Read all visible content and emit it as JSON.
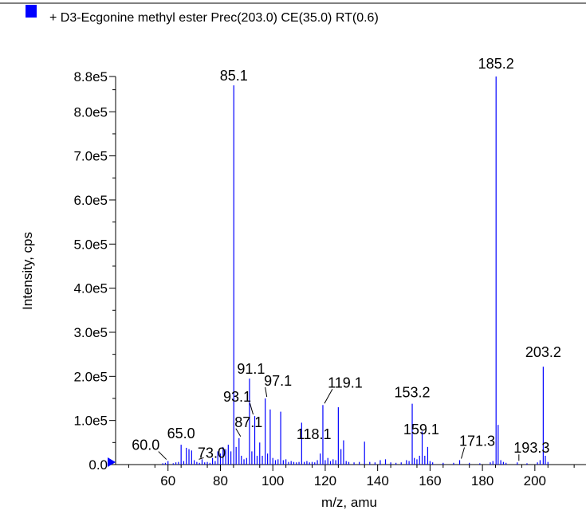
{
  "legend": {
    "label": "+ D3-Ecgonine methyl ester Prec(203.0) CE(35.0) RT(0.6)",
    "swatch_color": "#0000ff"
  },
  "chart_data": {
    "type": "bar",
    "title": "",
    "xlabel": "m/z, amu",
    "ylabel": "Intensity, cps",
    "xlim": [
      40,
      218
    ],
    "ylim": [
      0,
      880000.0
    ],
    "x_ticks": [
      60,
      80,
      100,
      120,
      140,
      160,
      180,
      200
    ],
    "y_ticks": [
      {
        "value": 0,
        "label": "0.0"
      },
      {
        "value": 100000,
        "label": "1.0e5"
      },
      {
        "value": 200000,
        "label": "2.0e5"
      },
      {
        "value": 300000,
        "label": "3.0e5"
      },
      {
        "value": 400000,
        "label": "4.0e5"
      },
      {
        "value": 500000,
        "label": "5.0e5"
      },
      {
        "value": 600000,
        "label": "6.0e5"
      },
      {
        "value": 700000,
        "label": "7.0e5"
      },
      {
        "value": 800000,
        "label": "8.0e5"
      },
      {
        "value": 880000,
        "label": "8.8e5"
      }
    ],
    "series_color": "#0000ff",
    "peaks": [
      {
        "x": 58.0,
        "y": 3000
      },
      {
        "x": 59.0,
        "y": 4000
      },
      {
        "x": 60.0,
        "y": 8000
      },
      {
        "x": 62.0,
        "y": 3000
      },
      {
        "x": 63.0,
        "y": 5000
      },
      {
        "x": 64.0,
        "y": 6000
      },
      {
        "x": 65.0,
        "y": 45000
      },
      {
        "x": 66.0,
        "y": 8000
      },
      {
        "x": 67.0,
        "y": 38000
      },
      {
        "x": 68.0,
        "y": 35000
      },
      {
        "x": 69.0,
        "y": 32000
      },
      {
        "x": 70.0,
        "y": 10000
      },
      {
        "x": 71.0,
        "y": 6000
      },
      {
        "x": 72.0,
        "y": 4000
      },
      {
        "x": 73.0,
        "y": 12000
      },
      {
        "x": 74.0,
        "y": 5000
      },
      {
        "x": 75.0,
        "y": 6000
      },
      {
        "x": 76.0,
        "y": 4000
      },
      {
        "x": 77.0,
        "y": 15000
      },
      {
        "x": 78.0,
        "y": 8000
      },
      {
        "x": 79.0,
        "y": 30000
      },
      {
        "x": 80.0,
        "y": 25000
      },
      {
        "x": 81.0,
        "y": 40000
      },
      {
        "x": 82.0,
        "y": 35000
      },
      {
        "x": 83.0,
        "y": 45000
      },
      {
        "x": 84.0,
        "y": 30000
      },
      {
        "x": 85.1,
        "y": 860000
      },
      {
        "x": 86.0,
        "y": 40000
      },
      {
        "x": 87.1,
        "y": 60000
      },
      {
        "x": 88.0,
        "y": 20000
      },
      {
        "x": 89.0,
        "y": 12000
      },
      {
        "x": 90.0,
        "y": 15000
      },
      {
        "x": 91.1,
        "y": 195000
      },
      {
        "x": 92.0,
        "y": 30000
      },
      {
        "x": 93.1,
        "y": 110000
      },
      {
        "x": 94.0,
        "y": 20000
      },
      {
        "x": 95.0,
        "y": 50000
      },
      {
        "x": 96.0,
        "y": 20000
      },
      {
        "x": 97.1,
        "y": 150000
      },
      {
        "x": 98.0,
        "y": 25000
      },
      {
        "x": 99.0,
        "y": 125000
      },
      {
        "x": 100.0,
        "y": 15000
      },
      {
        "x": 101.0,
        "y": 10000
      },
      {
        "x": 102.0,
        "y": 12000
      },
      {
        "x": 103.0,
        "y": 120000
      },
      {
        "x": 104.0,
        "y": 10000
      },
      {
        "x": 105.0,
        "y": 12000
      },
      {
        "x": 106.0,
        "y": 6000
      },
      {
        "x": 107.0,
        "y": 8000
      },
      {
        "x": 108.0,
        "y": 6000
      },
      {
        "x": 109.0,
        "y": 5000
      },
      {
        "x": 110.0,
        "y": 6000
      },
      {
        "x": 111.0,
        "y": 95000
      },
      {
        "x": 112.0,
        "y": 6000
      },
      {
        "x": 113.0,
        "y": 8000
      },
      {
        "x": 114.0,
        "y": 5000
      },
      {
        "x": 115.0,
        "y": 6000
      },
      {
        "x": 116.0,
        "y": 5000
      },
      {
        "x": 117.0,
        "y": 10000
      },
      {
        "x": 118.1,
        "y": 25000
      },
      {
        "x": 119.1,
        "y": 135000
      },
      {
        "x": 120.0,
        "y": 10000
      },
      {
        "x": 121.0,
        "y": 15000
      },
      {
        "x": 122.0,
        "y": 8000
      },
      {
        "x": 123.0,
        "y": 12000
      },
      {
        "x": 124.0,
        "y": 10000
      },
      {
        "x": 125.0,
        "y": 130000
      },
      {
        "x": 126.0,
        "y": 35000
      },
      {
        "x": 127.0,
        "y": 55000
      },
      {
        "x": 128.0,
        "y": 8000
      },
      {
        "x": 129.0,
        "y": 6000
      },
      {
        "x": 131.0,
        "y": 5000
      },
      {
        "x": 133.0,
        "y": 6000
      },
      {
        "x": 135.0,
        "y": 52000
      },
      {
        "x": 137.0,
        "y": 6000
      },
      {
        "x": 139.0,
        "y": 5000
      },
      {
        "x": 141.0,
        "y": 10000
      },
      {
        "x": 143.0,
        "y": 12000
      },
      {
        "x": 145.0,
        "y": 5000
      },
      {
        "x": 147.0,
        "y": 4000
      },
      {
        "x": 149.0,
        "y": 5000
      },
      {
        "x": 151.0,
        "y": 10000
      },
      {
        "x": 152.0,
        "y": 8000
      },
      {
        "x": 153.2,
        "y": 138000
      },
      {
        "x": 154.0,
        "y": 15000
      },
      {
        "x": 155.0,
        "y": 12000
      },
      {
        "x": 156.0,
        "y": 20000
      },
      {
        "x": 157.0,
        "y": 75000
      },
      {
        "x": 158.0,
        "y": 20000
      },
      {
        "x": 159.1,
        "y": 40000
      },
      {
        "x": 160.0,
        "y": 8000
      },
      {
        "x": 161.0,
        "y": 5000
      },
      {
        "x": 165.0,
        "y": 4000
      },
      {
        "x": 169.0,
        "y": 4000
      },
      {
        "x": 171.3,
        "y": 10000
      },
      {
        "x": 175.0,
        "y": 4000
      },
      {
        "x": 179.0,
        "y": 3000
      },
      {
        "x": 183.0,
        "y": 5000
      },
      {
        "x": 184.0,
        "y": 8000
      },
      {
        "x": 185.2,
        "y": 880000
      },
      {
        "x": 186.0,
        "y": 90000
      },
      {
        "x": 187.0,
        "y": 10000
      },
      {
        "x": 188.0,
        "y": 6000
      },
      {
        "x": 189.0,
        "y": 4000
      },
      {
        "x": 193.3,
        "y": 5000
      },
      {
        "x": 197.0,
        "y": 3000
      },
      {
        "x": 201.0,
        "y": 5000
      },
      {
        "x": 202.0,
        "y": 10000
      },
      {
        "x": 203.2,
        "y": 222000
      },
      {
        "x": 204.0,
        "y": 20000
      },
      {
        "x": 205.0,
        "y": 6000
      }
    ],
    "annotations": [
      {
        "label": "60.0",
        "x": 60.0,
        "y": 8000
      },
      {
        "label": "65.0",
        "x": 65.0,
        "y": 45000
      },
      {
        "label": "73.0",
        "x": 73.0,
        "y": 12000
      },
      {
        "label": "85.1",
        "x": 85.1,
        "y": 860000
      },
      {
        "label": "87.1",
        "x": 87.1,
        "y": 60000
      },
      {
        "label": "91.1",
        "x": 91.1,
        "y": 195000
      },
      {
        "label": "93.1",
        "x": 93.1,
        "y": 110000
      },
      {
        "label": "97.1",
        "x": 97.1,
        "y": 150000
      },
      {
        "label": "118.1",
        "x": 118.1,
        "y": 25000
      },
      {
        "label": "119.1",
        "x": 119.1,
        "y": 135000
      },
      {
        "label": "153.2",
        "x": 153.2,
        "y": 138000
      },
      {
        "label": "159.1",
        "x": 159.1,
        "y": 40000
      },
      {
        "label": "171.3",
        "x": 171.3,
        "y": 10000
      },
      {
        "label": "185.2",
        "x": 185.2,
        "y": 880000
      },
      {
        "label": "193.3",
        "x": 193.3,
        "y": 5000
      },
      {
        "label": "203.2",
        "x": 203.2,
        "y": 222000
      }
    ]
  }
}
